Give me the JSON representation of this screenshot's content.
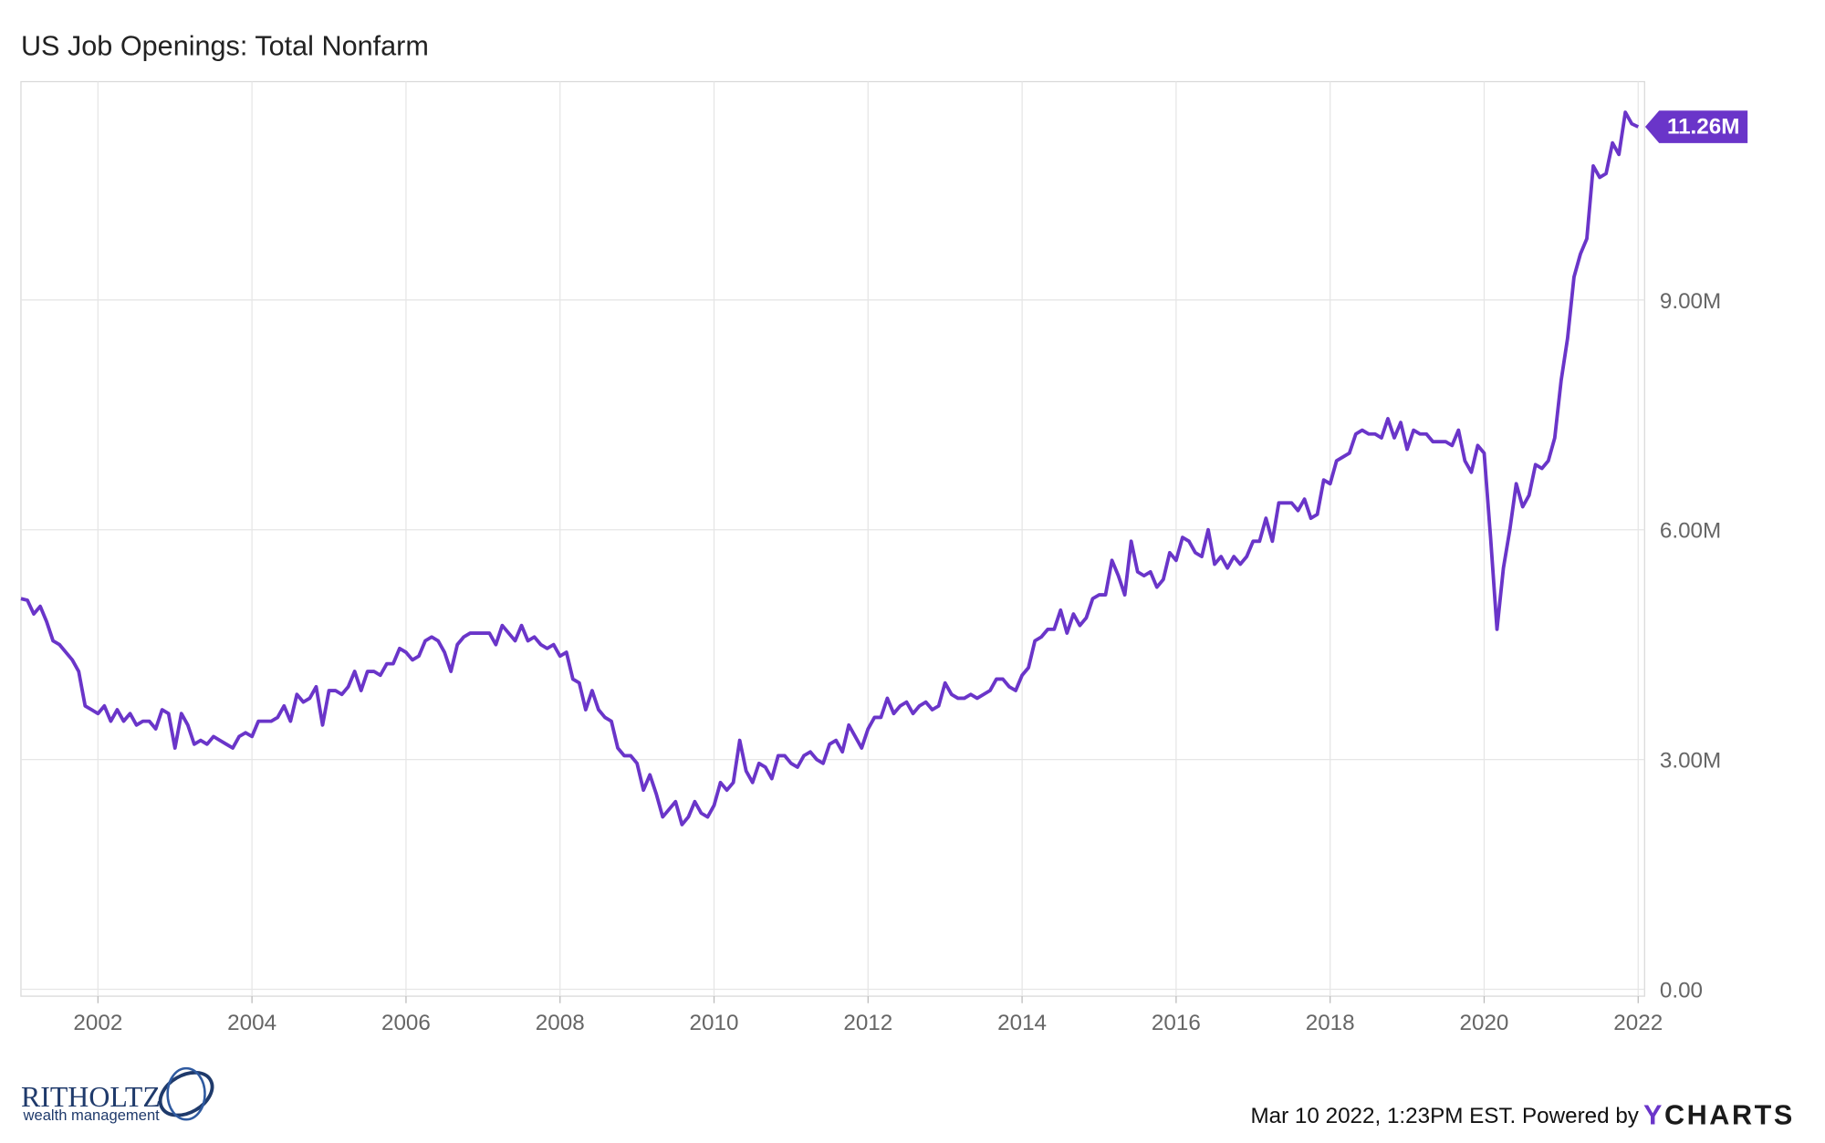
{
  "chart_data": {
    "type": "line",
    "title": "US Job Openings: Total Nonfarm",
    "footer": "Mar 10 2022, 1:23PM EST. Powered by",
    "brand": "YCHARTS",
    "logo": {
      "name": "RITHOLTZ",
      "tagline": "wealth management"
    },
    "xlim": [
      "2001-01",
      "2022-02"
    ],
    "ylim": [
      -0.09,
      11.85
    ],
    "xticks": [
      {
        "value": "2002-01",
        "label": "2002"
      },
      {
        "value": "2004-01",
        "label": "2004"
      },
      {
        "value": "2006-01",
        "label": "2006"
      },
      {
        "value": "2008-01",
        "label": "2008"
      },
      {
        "value": "2010-01",
        "label": "2010"
      },
      {
        "value": "2012-01",
        "label": "2012"
      },
      {
        "value": "2014-01",
        "label": "2014"
      },
      {
        "value": "2016-01",
        "label": "2016"
      },
      {
        "value": "2018-01",
        "label": "2018"
      },
      {
        "value": "2020-01",
        "label": "2020"
      },
      {
        "value": "2022-01",
        "label": "2022"
      }
    ],
    "yticks": [
      {
        "value": 0,
        "label": "0.00"
      },
      {
        "value": 3,
        "label": "3.00M"
      },
      {
        "value": 6,
        "label": "6.00M"
      },
      {
        "value": 9,
        "label": "9.00M"
      }
    ],
    "grid": true,
    "x": [
      "2001-01",
      "2001-02",
      "2001-03",
      "2001-04",
      "2001-05",
      "2001-06",
      "2001-07",
      "2001-08",
      "2001-09",
      "2001-10",
      "2001-11",
      "2001-12",
      "2002-01",
      "2002-02",
      "2002-03",
      "2002-04",
      "2002-05",
      "2002-06",
      "2002-07",
      "2002-08",
      "2002-09",
      "2002-10",
      "2002-11",
      "2002-12",
      "2003-01",
      "2003-02",
      "2003-03",
      "2003-04",
      "2003-05",
      "2003-06",
      "2003-07",
      "2003-08",
      "2003-09",
      "2003-10",
      "2003-11",
      "2003-12",
      "2004-01",
      "2004-02",
      "2004-03",
      "2004-04",
      "2004-05",
      "2004-06",
      "2004-07",
      "2004-08",
      "2004-09",
      "2004-10",
      "2004-11",
      "2004-12",
      "2005-01",
      "2005-02",
      "2005-03",
      "2005-04",
      "2005-05",
      "2005-06",
      "2005-07",
      "2005-08",
      "2005-09",
      "2005-10",
      "2005-11",
      "2005-12",
      "2006-01",
      "2006-02",
      "2006-03",
      "2006-04",
      "2006-05",
      "2006-06",
      "2006-07",
      "2006-08",
      "2006-09",
      "2006-10",
      "2006-11",
      "2006-12",
      "2007-01",
      "2007-02",
      "2007-03",
      "2007-04",
      "2007-05",
      "2007-06",
      "2007-07",
      "2007-08",
      "2007-09",
      "2007-10",
      "2007-11",
      "2007-12",
      "2008-01",
      "2008-02",
      "2008-03",
      "2008-04",
      "2008-05",
      "2008-06",
      "2008-07",
      "2008-08",
      "2008-09",
      "2008-10",
      "2008-11",
      "2008-12",
      "2009-01",
      "2009-02",
      "2009-03",
      "2009-04",
      "2009-05",
      "2009-06",
      "2009-07",
      "2009-08",
      "2009-09",
      "2009-10",
      "2009-11",
      "2009-12",
      "2010-01",
      "2010-02",
      "2010-03",
      "2010-04",
      "2010-05",
      "2010-06",
      "2010-07",
      "2010-08",
      "2010-09",
      "2010-10",
      "2010-11",
      "2010-12",
      "2011-01",
      "2011-02",
      "2011-03",
      "2011-04",
      "2011-05",
      "2011-06",
      "2011-07",
      "2011-08",
      "2011-09",
      "2011-10",
      "2011-11",
      "2011-12",
      "2012-01",
      "2012-02",
      "2012-03",
      "2012-04",
      "2012-05",
      "2012-06",
      "2012-07",
      "2012-08",
      "2012-09",
      "2012-10",
      "2012-11",
      "2012-12",
      "2013-01",
      "2013-02",
      "2013-03",
      "2013-04",
      "2013-05",
      "2013-06",
      "2013-07",
      "2013-08",
      "2013-09",
      "2013-10",
      "2013-11",
      "2013-12",
      "2014-01",
      "2014-02",
      "2014-03",
      "2014-04",
      "2014-05",
      "2014-06",
      "2014-07",
      "2014-08",
      "2014-09",
      "2014-10",
      "2014-11",
      "2014-12",
      "2015-01",
      "2015-02",
      "2015-03",
      "2015-04",
      "2015-05",
      "2015-06",
      "2015-07",
      "2015-08",
      "2015-09",
      "2015-10",
      "2015-11",
      "2015-12",
      "2016-01",
      "2016-02",
      "2016-03",
      "2016-04",
      "2016-05",
      "2016-06",
      "2016-07",
      "2016-08",
      "2016-09",
      "2016-10",
      "2016-11",
      "2016-12",
      "2017-01",
      "2017-02",
      "2017-03",
      "2017-04",
      "2017-05",
      "2017-06",
      "2017-07",
      "2017-08",
      "2017-09",
      "2017-10",
      "2017-11",
      "2017-12",
      "2018-01",
      "2018-02",
      "2018-03",
      "2018-04",
      "2018-05",
      "2018-06",
      "2018-07",
      "2018-08",
      "2018-09",
      "2018-10",
      "2018-11",
      "2018-12",
      "2019-01",
      "2019-02",
      "2019-03",
      "2019-04",
      "2019-05",
      "2019-06",
      "2019-07",
      "2019-08",
      "2019-09",
      "2019-10",
      "2019-11",
      "2019-12",
      "2020-01",
      "2020-02",
      "2020-03",
      "2020-04",
      "2020-05",
      "2020-06",
      "2020-07",
      "2020-08",
      "2020-09",
      "2020-10",
      "2020-11",
      "2020-12",
      "2021-01",
      "2021-02",
      "2021-03",
      "2021-04",
      "2021-05",
      "2021-06",
      "2021-07",
      "2021-08",
      "2021-09",
      "2021-10",
      "2021-11",
      "2021-12",
      "2022-01"
    ],
    "series": [
      {
        "name": "US Job Openings: Total Nonfarm",
        "color": "#6a35c9",
        "values": [
          5.1,
          5.08,
          4.9,
          5.0,
          4.8,
          4.55,
          4.5,
          4.4,
          4.3,
          4.15,
          3.7,
          3.65,
          3.6,
          3.7,
          3.5,
          3.65,
          3.5,
          3.6,
          3.45,
          3.5,
          3.5,
          3.4,
          3.65,
          3.6,
          3.15,
          3.6,
          3.45,
          3.2,
          3.25,
          3.2,
          3.3,
          3.25,
          3.2,
          3.15,
          3.3,
          3.35,
          3.3,
          3.5,
          3.5,
          3.5,
          3.55,
          3.7,
          3.5,
          3.85,
          3.75,
          3.8,
          3.95,
          3.45,
          3.9,
          3.9,
          3.85,
          3.95,
          4.15,
          3.9,
          4.15,
          4.15,
          4.1,
          4.25,
          4.25,
          4.45,
          4.4,
          4.3,
          4.35,
          4.55,
          4.6,
          4.55,
          4.4,
          4.15,
          4.5,
          4.6,
          4.65,
          4.65,
          4.65,
          4.65,
          4.5,
          4.75,
          4.65,
          4.55,
          4.75,
          4.55,
          4.6,
          4.5,
          4.45,
          4.5,
          4.35,
          4.4,
          4.05,
          4.0,
          3.65,
          3.9,
          3.65,
          3.55,
          3.5,
          3.15,
          3.05,
          3.05,
          2.95,
          2.6,
          2.8,
          2.55,
          2.25,
          2.35,
          2.45,
          2.15,
          2.25,
          2.45,
          2.3,
          2.25,
          2.4,
          2.7,
          2.6,
          2.7,
          3.25,
          2.85,
          2.7,
          2.95,
          2.9,
          2.75,
          3.05,
          3.05,
          2.95,
          2.9,
          3.05,
          3.1,
          3.0,
          2.95,
          3.2,
          3.25,
          3.1,
          3.45,
          3.3,
          3.15,
          3.4,
          3.55,
          3.55,
          3.8,
          3.6,
          3.7,
          3.75,
          3.6,
          3.7,
          3.75,
          3.65,
          3.7,
          4.0,
          3.85,
          3.8,
          3.8,
          3.85,
          3.8,
          3.85,
          3.9,
          4.05,
          4.05,
          3.95,
          3.9,
          4.1,
          4.2,
          4.55,
          4.6,
          4.7,
          4.7,
          4.95,
          4.65,
          4.9,
          4.75,
          4.85,
          5.1,
          5.15,
          5.15,
          5.6,
          5.4,
          5.15,
          5.85,
          5.45,
          5.4,
          5.45,
          5.25,
          5.35,
          5.7,
          5.6,
          5.9,
          5.85,
          5.7,
          5.65,
          6.0,
          5.55,
          5.65,
          5.5,
          5.65,
          5.55,
          5.65,
          5.85,
          5.85,
          6.15,
          5.85,
          6.35,
          6.35,
          6.35,
          6.25,
          6.4,
          6.15,
          6.2,
          6.65,
          6.6,
          6.9,
          6.95,
          7.0,
          7.25,
          7.3,
          7.25,
          7.25,
          7.2,
          7.45,
          7.2,
          7.4,
          7.05,
          7.3,
          7.25,
          7.25,
          7.15,
          7.15,
          7.15,
          7.1,
          7.3,
          6.9,
          6.75,
          7.1,
          7.0,
          5.9,
          4.7,
          5.5,
          6.0,
          6.6,
          6.3,
          6.45,
          6.85,
          6.8,
          6.9,
          7.2,
          7.95,
          8.5,
          9.3,
          9.6,
          9.8,
          10.75,
          10.6,
          10.65,
          11.05,
          10.9,
          11.45,
          11.3,
          11.26
        ],
        "value_labels": [
          null,
          null,
          null,
          null,
          null,
          null,
          null,
          null,
          null,
          null,
          null,
          null,
          null,
          null,
          null,
          null,
          null,
          null,
          null,
          null,
          null,
          null,
          null,
          null,
          null,
          null,
          null,
          null,
          null,
          null,
          null,
          null,
          null,
          null,
          null,
          null,
          null,
          null,
          null,
          null,
          null,
          null,
          null,
          null,
          null,
          null,
          null,
          null,
          null,
          null,
          null,
          null,
          null,
          null,
          null,
          null,
          null,
          null,
          null,
          null,
          null,
          null,
          null,
          null,
          null,
          null,
          null,
          null,
          null,
          null,
          null,
          null,
          null,
          null,
          null,
          null,
          null,
          null,
          null,
          null,
          null,
          null,
          null,
          null,
          null,
          null,
          null,
          null,
          null,
          null,
          null,
          null,
          null,
          null,
          null,
          null,
          null,
          null,
          null,
          null,
          null,
          null,
          null,
          null,
          null,
          null,
          null,
          null,
          null,
          null,
          null,
          null,
          null,
          null,
          null,
          null,
          null,
          null,
          null,
          null,
          null,
          null,
          null,
          null,
          null,
          null,
          null,
          null,
          null,
          null,
          null,
          null,
          null,
          null,
          null,
          null,
          null,
          null,
          null,
          null,
          null,
          null,
          null,
          null,
          null,
          null,
          null,
          null,
          null,
          null,
          null,
          null,
          null,
          null,
          null,
          null,
          null,
          null,
          null,
          null,
          null,
          null,
          null,
          null,
          null,
          null,
          null,
          null,
          null,
          null,
          null,
          null,
          null,
          null,
          null,
          null,
          null,
          null,
          null,
          null,
          null,
          null,
          null,
          null,
          null,
          null,
          null,
          null,
          null,
          null,
          null,
          null,
          null,
          null,
          null,
          null,
          null,
          null,
          null,
          null,
          null,
          null,
          null,
          null,
          null,
          null,
          null,
          null,
          null,
          null,
          null,
          null,
          null,
          null,
          null,
          null,
          null,
          null,
          null,
          null,
          null,
          null,
          null,
          null,
          null,
          null,
          null,
          null,
          null,
          null,
          null,
          null,
          null,
          null,
          null,
          null,
          null,
          null,
          null,
          null,
          null,
          null,
          null,
          null,
          null,
          null,
          null,
          null,
          null,
          null,
          null,
          null,
          "11.26M"
        ]
      }
    ]
  }
}
